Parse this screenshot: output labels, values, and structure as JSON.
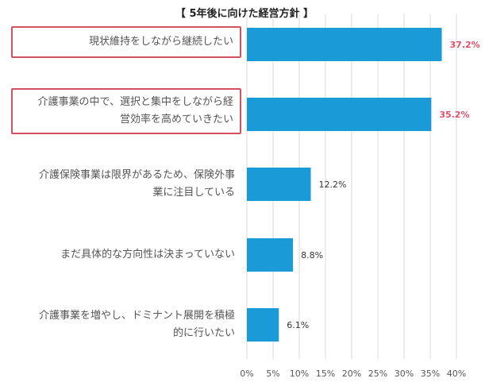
{
  "chart_data": {
    "type": "bar",
    "orientation": "horizontal",
    "title": "【 5年後に向けた経営方針 】",
    "categories": [
      [
        "現状維持をしながら継続したい"
      ],
      [
        "介護事業の中で、選択と集中をしながら経",
        "営効率を高めていきたい"
      ],
      [
        "介護保険事業は限界があるため、保険外事",
        "業に注目している"
      ],
      [
        "まだ具体的な方向性は決まっていない"
      ],
      [
        "介護事業を増やし、ドミナント展開を積極",
        "的に行いたい"
      ]
    ],
    "values": [
      37.2,
      35.2,
      12.2,
      8.8,
      6.1
    ],
    "value_labels": [
      "37.2%",
      "35.2%",
      "12.2%",
      "8.8%",
      "6.1%"
    ],
    "highlighted": [
      true,
      true,
      false,
      false,
      false
    ],
    "xlim": [
      0,
      40
    ],
    "xticks": [
      "0%",
      "5%",
      "10%",
      "15%",
      "20%",
      "25%",
      "30%",
      "35%",
      "40%"
    ],
    "grid": true,
    "bar_color": "#1a9bd7",
    "highlight_color": "#e0506a"
  }
}
